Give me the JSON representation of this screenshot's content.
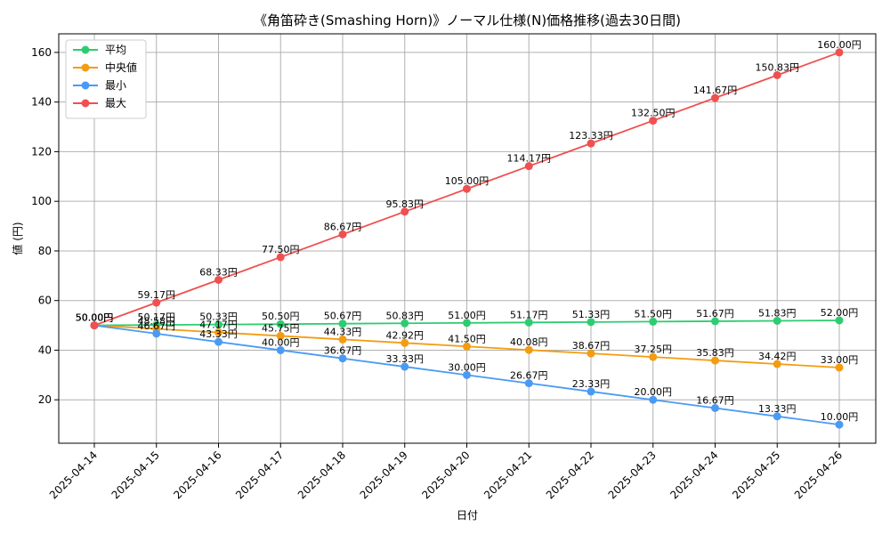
{
  "chart_data": {
    "type": "line",
    "title": "《角笛砕き(Smashing Horn)》ノーマル仕様(N)価格推移(過去30日間)",
    "xlabel": "日付",
    "ylabel": "値 (円)",
    "categories": [
      "2025-04-14",
      "2025-04-15",
      "2025-04-16",
      "2025-04-17",
      "2025-04-18",
      "2025-04-19",
      "2025-04-20",
      "2025-04-21",
      "2025-04-22",
      "2025-04-23",
      "2025-04-24",
      "2025-04-25",
      "2025-04-26"
    ],
    "ylim": [
      2.5,
      167.5
    ],
    "yticks": [
      20,
      40,
      60,
      80,
      100,
      120,
      140,
      160
    ],
    "grid": true,
    "legend_position": "top-left",
    "value_suffix": "円",
    "series": [
      {
        "name": "平均",
        "color": "#2ecc71",
        "values": [
          50.0,
          50.17,
          50.33,
          50.5,
          50.67,
          50.83,
          51.0,
          51.17,
          51.33,
          51.5,
          51.67,
          51.83,
          52.0
        ]
      },
      {
        "name": "中央値",
        "color": "#f39c12",
        "values": [
          50.0,
          48.58,
          47.17,
          45.75,
          44.33,
          42.92,
          41.5,
          40.08,
          38.67,
          37.25,
          35.83,
          34.42,
          33.0
        ]
      },
      {
        "name": "最小",
        "color": "#4a9af5",
        "values": [
          50.0,
          46.67,
          43.33,
          40.0,
          36.67,
          33.33,
          30.0,
          26.67,
          23.33,
          20.0,
          16.67,
          13.33,
          10.0
        ]
      },
      {
        "name": "最大",
        "color": "#f05050",
        "values": [
          50.0,
          59.17,
          68.33,
          77.5,
          86.67,
          95.83,
          105.0,
          114.17,
          123.33,
          132.5,
          141.67,
          150.83,
          160.0
        ]
      }
    ]
  }
}
